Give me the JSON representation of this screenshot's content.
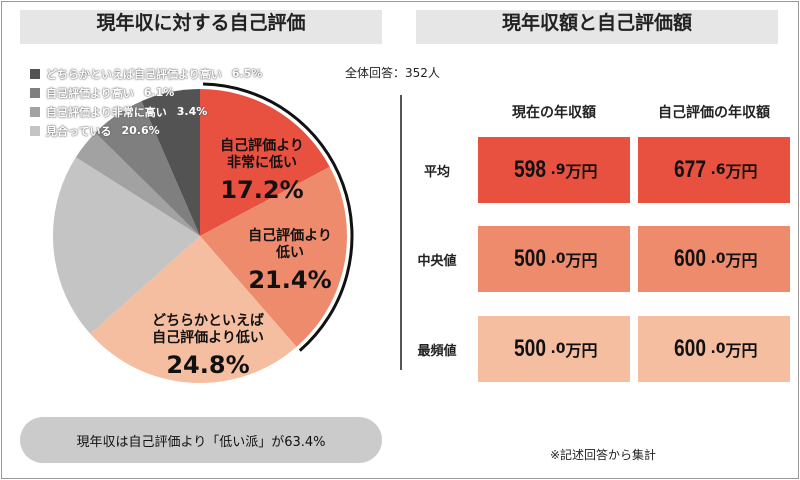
{
  "left_title": "現年収に対する自己評価",
  "right_title": "現年収額と自己評価額",
  "total_respondents": "全体回答：352人",
  "banner": "現年収は自己評価より「低い派」が63.4%",
  "note": "※記述回答から集計",
  "chart_data": [
    {
      "type": "pie",
      "title": "現年収に対する自己評価",
      "start": "top",
      "direction": "clockwise",
      "slices": [
        {
          "label": "自己評価より非常に低い",
          "value": 17.2,
          "color": "#e8503f",
          "label_lines": [
            "自己評価より",
            "非常に低い"
          ],
          "pct": "17.2%"
        },
        {
          "label": "自己評価より低い",
          "value": 21.4,
          "color": "#ee8b6d",
          "label_lines": [
            "自己評価より",
            "低い"
          ],
          "pct": "21.4%"
        },
        {
          "label": "どちらかといえば自己評価より低い",
          "value": 24.8,
          "color": "#f5bea0",
          "label_lines": [
            "どちらかといえば",
            "自己評価より低い"
          ],
          "pct": "24.8%"
        },
        {
          "label": "見合っている",
          "value": 20.6,
          "color": "#c4c4c4",
          "legend_pct": "20.6%"
        },
        {
          "label": "自己評価より非常に高い",
          "value": 3.4,
          "color": "#a2a2a2",
          "legend_pct": "3.4%"
        },
        {
          "label": "自己評価より高い",
          "value": 6.1,
          "color": "#7f7f7f",
          "legend_pct": "6.1%"
        },
        {
          "label": "どちらかといえば自己評価より高い",
          "value": 6.5,
          "color": "#535353",
          "legend_pct": "6.5%"
        }
      ],
      "legend": [
        {
          "label": "どちらかといえば自己評価より高い",
          "pct": "6.5%",
          "color": "#535353"
        },
        {
          "label": "自己評価より高い",
          "pct": "6.1%",
          "color": "#7f7f7f"
        },
        {
          "label": "自己評価より非常に高い",
          "pct": "3.4%",
          "color": "#a2a2a2"
        },
        {
          "label": "見合っている",
          "pct": "20.6%",
          "color": "#c4c4c4"
        }
      ],
      "legend_placement": "top-left"
    },
    {
      "type": "table",
      "title": "現年収額と自己評価額",
      "columns": [
        "現在の年収額",
        "自己評価の年収額"
      ],
      "rows": [
        {
          "label": "平均",
          "values": [
            {
              "int": "598",
              "dec": ".9",
              "unit": "万円"
            },
            {
              "int": "677",
              "dec": ".6",
              "unit": "万円"
            }
          ],
          "color": "#e8503f"
        },
        {
          "label": "中央値",
          "values": [
            {
              "int": "500",
              "dec": ".0",
              "unit": "万円"
            },
            {
              "int": "600",
              "dec": ".0",
              "unit": "万円"
            }
          ],
          "color": "#ee8b6d"
        },
        {
          "label": "最頻値",
          "values": [
            {
              "int": "500",
              "dec": ".0",
              "unit": "万円"
            },
            {
              "int": "600",
              "dec": ".0",
              "unit": "万円"
            }
          ],
          "color": "#f5bea0"
        }
      ]
    }
  ]
}
